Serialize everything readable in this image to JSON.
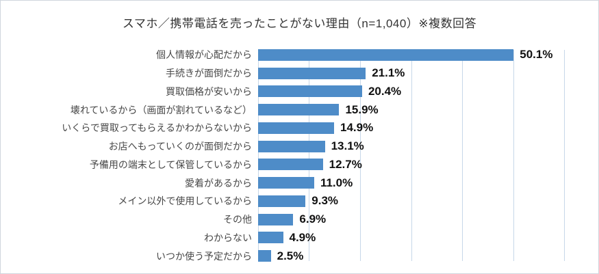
{
  "title": "スマホ／携帯電話を売ったことがない理由（n=1,040）※複数回答",
  "colors": {
    "bar": "#4e8cc8",
    "gridline": "#c7d7e8",
    "frame_border": "#cfd5dd",
    "category_label": "#474747",
    "value_label": "#111111"
  },
  "chart_data": {
    "type": "bar",
    "orientation": "horizontal",
    "title": "スマホ／携帯電話を売ったことがない理由（n=1,040）※複数回答",
    "categories": [
      "個人情報が心配だから",
      "手続きが面倒だから",
      "買取価格が安いから",
      "壊れているから（画面が割れているなど）",
      "いくらで買取ってもらえるかわからないから",
      "お店へもっていくのが面倒だから",
      "予備用の端末として保管しているから",
      "愛着があるから",
      "メイン以外で使用しているから",
      "その他",
      "わからない",
      "いつか使う予定だから"
    ],
    "values": [
      50.1,
      21.1,
      20.4,
      15.9,
      14.9,
      13.1,
      12.7,
      11.0,
      9.3,
      6.9,
      4.9,
      2.5
    ],
    "value_labels": [
      "50.1%",
      "21.1%",
      "20.4%",
      "15.9%",
      "14.9%",
      "13.1%",
      "12.7%",
      "11.0%",
      "9.3%",
      "6.9%",
      "4.9%",
      "2.5%"
    ],
    "xlabel": "",
    "ylabel": "",
    "xlim": [
      0,
      60
    ],
    "gridline_interval": 10,
    "grid": "vertical",
    "legend": "none"
  }
}
